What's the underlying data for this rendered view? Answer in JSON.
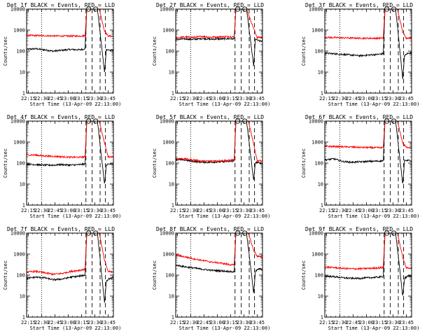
{
  "colors": {
    "events": "#000000",
    "lld": "#ff0000",
    "background": "#ffffff",
    "axes": "#000000"
  },
  "shared": {
    "xlabel": "Start Time (13-Apr-09 22:13:00)",
    "ylabel": "Counts/sec",
    "x_ticks": [
      "22:15",
      "22:30",
      "22:45",
      "23:00",
      "23:15",
      "23:30",
      "23:45"
    ],
    "y_ticks": [
      "1",
      "10",
      "100",
      "1000",
      "10000"
    ]
  },
  "chart_data": [
    {
      "type": "line",
      "title": "Det 1f BLACK = Events, RED = LLD",
      "xlabel": "Start Time (13-Apr-09 22:13:00)",
      "ylabel": "Counts/sec",
      "x_range_minutes_after_start": [
        0,
        98
      ],
      "ylim": [
        1,
        10000
      ],
      "y_scale": "log",
      "vlines": [
        {
          "t": 17,
          "style": "dotted"
        },
        {
          "t": 67,
          "style": "dashed"
        },
        {
          "t": 74,
          "style": "dashed"
        },
        {
          "t": 83,
          "style": "dashed"
        },
        {
          "t": 89,
          "style": "dashed"
        }
      ],
      "circles": [
        {
          "t": 70,
          "y": 10000
        },
        {
          "t": 78,
          "y": 10000
        }
      ],
      "series": [
        {
          "name": "Events",
          "color": "#000000",
          "x": [
            0,
            10,
            20,
            30,
            40,
            50,
            60,
            66,
            68,
            80,
            88,
            90,
            94,
            98
          ],
          "y": [
            120,
            130,
            115,
            100,
            110,
            120,
            115,
            130,
            10000,
            10000,
            10,
            120,
            110,
            110
          ]
        },
        {
          "name": "LLD",
          "color": "#ff0000",
          "x": [
            0,
            20,
            40,
            60,
            66,
            68,
            82,
            88,
            92,
            98
          ],
          "y": [
            560,
            540,
            520,
            520,
            540,
            10000,
            10000,
            900,
            520,
            520
          ]
        }
      ]
    },
    {
      "type": "line",
      "title": "Det 2f BLACK = Events, RED = LLD",
      "xlabel": "Start Time (13-Apr-09 22:13:00)",
      "ylabel": "Counts/sec",
      "x_range_minutes_after_start": [
        0,
        98
      ],
      "ylim": [
        1,
        10000
      ],
      "y_scale": "log",
      "vlines": [
        {
          "t": 17,
          "style": "dotted"
        },
        {
          "t": 67,
          "style": "dashed"
        },
        {
          "t": 74,
          "style": "dashed"
        },
        {
          "t": 83,
          "style": "dashed"
        },
        {
          "t": 89,
          "style": "dashed"
        }
      ],
      "circles": [
        {
          "t": 70,
          "y": 10000
        },
        {
          "t": 78,
          "y": 10000
        }
      ],
      "series": [
        {
          "name": "Events",
          "color": "#000000",
          "x": [
            0,
            10,
            20,
            30,
            40,
            50,
            60,
            66,
            68,
            80,
            88,
            90,
            94,
            98
          ],
          "y": [
            350,
            380,
            360,
            400,
            370,
            380,
            390,
            380,
            10000,
            10000,
            20,
            380,
            300,
            300
          ]
        },
        {
          "name": "LLD",
          "color": "#ff0000",
          "x": [
            0,
            10,
            20,
            30,
            40,
            50,
            60,
            66,
            68,
            80,
            88,
            92,
            98
          ],
          "y": [
            420,
            470,
            450,
            500,
            460,
            480,
            490,
            480,
            10000,
            10000,
            1200,
            450,
            450
          ]
        }
      ]
    },
    {
      "type": "line",
      "title": "Det 3f BLACK = Events, RED = LLD",
      "xlabel": "Start Time (13-Apr-09 22:13:00)",
      "ylabel": "Counts/sec",
      "x_range_minutes_after_start": [
        0,
        98
      ],
      "ylim": [
        1,
        10000
      ],
      "y_scale": "log",
      "vlines": [
        {
          "t": 17,
          "style": "dotted"
        },
        {
          "t": 67,
          "style": "dashed"
        },
        {
          "t": 74,
          "style": "dashed"
        },
        {
          "t": 83,
          "style": "dashed"
        },
        {
          "t": 89,
          "style": "dashed"
        }
      ],
      "circles": [
        {
          "t": 70,
          "y": 10000
        },
        {
          "t": 78,
          "y": 10000
        }
      ],
      "series": [
        {
          "name": "Events",
          "color": "#000000",
          "x": [
            0,
            10,
            20,
            30,
            40,
            50,
            60,
            66,
            68,
            80,
            88,
            90,
            94,
            98
          ],
          "y": [
            80,
            75,
            70,
            65,
            60,
            65,
            70,
            75,
            10000,
            10000,
            5,
            60,
            80,
            80
          ]
        },
        {
          "name": "LLD",
          "color": "#ff0000",
          "x": [
            0,
            20,
            40,
            60,
            66,
            68,
            82,
            88,
            92,
            98
          ],
          "y": [
            450,
            430,
            410,
            410,
            420,
            10000,
            10000,
            800,
            420,
            420
          ]
        }
      ]
    },
    {
      "type": "line",
      "title": "Det 4f BLACK = Events, RED = LLD",
      "xlabel": "Start Time (13-Apr-09 22:13:00)",
      "ylabel": "Counts/sec",
      "x_range_minutes_after_start": [
        0,
        98
      ],
      "ylim": [
        1,
        10000
      ],
      "y_scale": "log",
      "vlines": [
        {
          "t": 17,
          "style": "dotted"
        },
        {
          "t": 67,
          "style": "dashed"
        },
        {
          "t": 74,
          "style": "dashed"
        },
        {
          "t": 83,
          "style": "dashed"
        },
        {
          "t": 89,
          "style": "dashed"
        }
      ],
      "circles": [
        {
          "t": 70,
          "y": 10000
        },
        {
          "t": 78,
          "y": 10000
        }
      ],
      "series": [
        {
          "name": "Events",
          "color": "#000000",
          "x": [
            0,
            10,
            20,
            30,
            40,
            50,
            60,
            66,
            68,
            80,
            88,
            90,
            94,
            98
          ],
          "y": [
            90,
            85,
            80,
            80,
            85,
            80,
            85,
            90,
            10000,
            10000,
            10,
            80,
            90,
            90
          ]
        },
        {
          "name": "LLD",
          "color": "#ff0000",
          "x": [
            0,
            10,
            20,
            30,
            40,
            50,
            60,
            66,
            68,
            82,
            88,
            92,
            98
          ],
          "y": [
            250,
            240,
            220,
            210,
            200,
            190,
            190,
            200,
            10000,
            10000,
            900,
            200,
            200
          ]
        }
      ]
    },
    {
      "type": "line",
      "title": "Det 5f BLACK = Events, RED = LLD",
      "xlabel": "Start Time (13-Apr-09 22:13:00)",
      "ylabel": "Counts/sec",
      "x_range_minutes_after_start": [
        0,
        98
      ],
      "ylim": [
        1,
        10000
      ],
      "y_scale": "log",
      "vlines": [
        {
          "t": 17,
          "style": "dotted"
        },
        {
          "t": 67,
          "style": "dashed"
        },
        {
          "t": 74,
          "style": "dashed"
        },
        {
          "t": 83,
          "style": "dashed"
        },
        {
          "t": 89,
          "style": "dashed"
        }
      ],
      "circles": [
        {
          "t": 70,
          "y": 10000
        },
        {
          "t": 78,
          "y": 10000
        }
      ],
      "series": [
        {
          "name": "Events",
          "color": "#000000",
          "x": [
            0,
            10,
            20,
            30,
            40,
            50,
            60,
            66,
            68,
            80,
            88,
            90,
            94,
            98
          ],
          "y": [
            150,
            140,
            120,
            110,
            110,
            115,
            120,
            125,
            10000,
            10000,
            15,
            110,
            100,
            100
          ]
        },
        {
          "name": "LLD",
          "color": "#ff0000",
          "x": [
            0,
            10,
            20,
            30,
            40,
            50,
            60,
            66,
            68,
            82,
            88,
            92,
            98
          ],
          "y": [
            170,
            160,
            140,
            125,
            125,
            130,
            135,
            140,
            10000,
            10000,
            800,
            130,
            130
          ]
        }
      ]
    },
    {
      "type": "line",
      "title": "Det 6f BLACK = Events, RED = LLD",
      "xlabel": "Start Time (13-Apr-09 22:13:00)",
      "ylabel": "Counts/sec",
      "x_range_minutes_after_start": [
        0,
        98
      ],
      "ylim": [
        1,
        10000
      ],
      "y_scale": "log",
      "vlines": [
        {
          "t": 17,
          "style": "dotted"
        },
        {
          "t": 67,
          "style": "dashed"
        },
        {
          "t": 74,
          "style": "dashed"
        },
        {
          "t": 83,
          "style": "dashed"
        },
        {
          "t": 89,
          "style": "dashed"
        }
      ],
      "circles": [
        {
          "t": 70,
          "y": 10000
        },
        {
          "t": 78,
          "y": 10000
        }
      ],
      "series": [
        {
          "name": "Events",
          "color": "#000000",
          "x": [
            0,
            10,
            20,
            30,
            40,
            50,
            60,
            66,
            68,
            80,
            88,
            90,
            94,
            98
          ],
          "y": [
            140,
            160,
            120,
            110,
            115,
            120,
            125,
            130,
            10000,
            10000,
            10,
            130,
            140,
            120
          ]
        },
        {
          "name": "LLD",
          "color": "#ff0000",
          "x": [
            0,
            20,
            40,
            60,
            66,
            68,
            82,
            88,
            92,
            98
          ],
          "y": [
            630,
            600,
            560,
            540,
            550,
            10000,
            10000,
            900,
            560,
            560
          ]
        }
      ]
    },
    {
      "type": "line",
      "title": "Det 7f BLACK = Events, RED = LLD",
      "xlabel": "Start Time (13-Apr-09 22:13:00)",
      "ylabel": "Counts/sec",
      "x_range_minutes_after_start": [
        0,
        98
      ],
      "ylim": [
        1,
        10000
      ],
      "y_scale": "log",
      "vlines": [
        {
          "t": 17,
          "style": "dotted"
        },
        {
          "t": 67,
          "style": "dashed"
        },
        {
          "t": 74,
          "style": "dashed"
        },
        {
          "t": 83,
          "style": "dashed"
        },
        {
          "t": 89,
          "style": "dashed"
        }
      ],
      "circles": [
        {
          "t": 70,
          "y": 10000
        },
        {
          "t": 78,
          "y": 10000
        }
      ],
      "series": [
        {
          "name": "Events",
          "color": "#000000",
          "x": [
            0,
            10,
            20,
            30,
            40,
            50,
            60,
            66,
            68,
            80,
            88,
            90,
            94,
            98
          ],
          "y": [
            70,
            80,
            75,
            60,
            65,
            80,
            90,
            100,
            10000,
            10000,
            5,
            50,
            70,
            70
          ]
        },
        {
          "name": "LLD",
          "color": "#ff0000",
          "x": [
            0,
            10,
            20,
            30,
            40,
            50,
            60,
            66,
            68,
            82,
            88,
            92,
            98
          ],
          "y": [
            140,
            150,
            130,
            110,
            120,
            150,
            170,
            190,
            10000,
            10000,
            500,
            150,
            140
          ]
        }
      ]
    },
    {
      "type": "line",
      "title": "Det 8f BLACK = Events, RED = LLD",
      "xlabel": "Start Time (13-Apr-09 22:13:00)",
      "ylabel": "Counts/sec",
      "x_range_minutes_after_start": [
        0,
        98
      ],
      "ylim": [
        1,
        10000
      ],
      "y_scale": "log",
      "vlines": [
        {
          "t": 17,
          "style": "dotted"
        },
        {
          "t": 67,
          "style": "dashed"
        },
        {
          "t": 74,
          "style": "dashed"
        },
        {
          "t": 83,
          "style": "dashed"
        },
        {
          "t": 89,
          "style": "dashed"
        }
      ],
      "circles": [
        {
          "t": 70,
          "y": 10000
        },
        {
          "t": 78,
          "y": 10000
        }
      ],
      "series": [
        {
          "name": "Events",
          "color": "#000000",
          "x": [
            0,
            10,
            20,
            30,
            40,
            50,
            60,
            66,
            68,
            80,
            88,
            90,
            94,
            98
          ],
          "y": [
            300,
            250,
            220,
            190,
            170,
            160,
            150,
            140,
            10000,
            10000,
            15,
            150,
            200,
            180
          ]
        },
        {
          "name": "LLD",
          "color": "#ff0000",
          "x": [
            0,
            10,
            20,
            30,
            40,
            50,
            60,
            66,
            68,
            82,
            88,
            92,
            98
          ],
          "y": [
            900,
            750,
            600,
            500,
            420,
            380,
            320,
            300,
            10000,
            10000,
            1500,
            800,
            700
          ]
        }
      ]
    },
    {
      "type": "line",
      "title": "Det 9f BLACK = Events, RED = LLD",
      "xlabel": "Start Time (13-Apr-09 22:13:00)",
      "ylabel": "Counts/sec",
      "x_range_minutes_after_start": [
        0,
        98
      ],
      "ylim": [
        1,
        10000
      ],
      "y_scale": "log",
      "vlines": [
        {
          "t": 17,
          "style": "dotted"
        },
        {
          "t": 67,
          "style": "dashed"
        },
        {
          "t": 74,
          "style": "dashed"
        },
        {
          "t": 83,
          "style": "dashed"
        },
        {
          "t": 89,
          "style": "dashed"
        }
      ],
      "circles": [
        {
          "t": 70,
          "y": 10000
        },
        {
          "t": 78,
          "y": 10000
        }
      ],
      "series": [
        {
          "name": "Events",
          "color": "#000000",
          "x": [
            0,
            10,
            20,
            30,
            40,
            50,
            60,
            66,
            68,
            80,
            88,
            90,
            94,
            98
          ],
          "y": [
            90,
            85,
            75,
            70,
            70,
            75,
            80,
            85,
            10000,
            10000,
            10,
            70,
            90,
            90
          ]
        },
        {
          "name": "LLD",
          "color": "#ff0000",
          "x": [
            0,
            10,
            20,
            30,
            40,
            50,
            60,
            66,
            68,
            82,
            88,
            92,
            98
          ],
          "y": [
            240,
            230,
            210,
            200,
            200,
            210,
            220,
            230,
            10000,
            10000,
            700,
            220,
            220
          ]
        }
      ]
    }
  ]
}
